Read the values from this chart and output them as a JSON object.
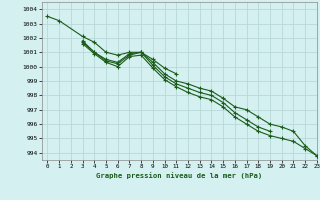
{
  "title": "Graphe pression niveau de la mer (hPa)",
  "background_color": "#d4f0f0",
  "grid_color": "#b8d8d8",
  "line_color": "#1a5c1a",
  "xlim": [
    -0.5,
    23
  ],
  "ylim": [
    993.5,
    1004.5
  ],
  "yticks": [
    994,
    995,
    996,
    997,
    998,
    999,
    1000,
    1001,
    1002,
    1003,
    1004
  ],
  "xticks": [
    0,
    1,
    2,
    3,
    4,
    5,
    6,
    7,
    8,
    9,
    10,
    11,
    12,
    13,
    14,
    15,
    16,
    17,
    18,
    19,
    20,
    21,
    22,
    23
  ],
  "series": [
    [
      0,
      1003.5
    ],
    [
      1,
      1003.2
    ],
    [
      3,
      1002.1
    ],
    [
      4,
      1001.7
    ],
    [
      5,
      1001.0
    ],
    [
      6,
      1000.8
    ],
    [
      7,
      1001.0
    ],
    [
      8,
      1001.0
    ],
    [
      9,
      1000.5
    ],
    [
      10,
      999.9
    ],
    [
      11,
      999.5
    ]
  ],
  "series2": [
    [
      3,
      1001.8
    ],
    [
      4,
      1001.0
    ],
    [
      5,
      1000.5
    ],
    [
      6,
      1000.3
    ],
    [
      7,
      1000.9
    ],
    [
      8,
      1001.0
    ],
    [
      9,
      1000.3
    ],
    [
      10,
      999.5
    ],
    [
      11,
      999.0
    ],
    [
      12,
      998.8
    ],
    [
      13,
      998.5
    ],
    [
      14,
      998.3
    ],
    [
      15,
      997.8
    ],
    [
      16,
      997.2
    ],
    [
      17,
      997.0
    ],
    [
      18,
      996.5
    ],
    [
      19,
      996.0
    ],
    [
      20,
      995.8
    ],
    [
      21,
      995.5
    ],
    [
      22,
      994.5
    ],
    [
      23,
      993.8
    ]
  ],
  "series3": [
    [
      3,
      1001.7
    ],
    [
      4,
      1001.0
    ],
    [
      5,
      1000.4
    ],
    [
      6,
      1000.2
    ],
    [
      7,
      1000.8
    ],
    [
      8,
      1001.0
    ],
    [
      9,
      1000.1
    ],
    [
      10,
      999.3
    ],
    [
      11,
      998.8
    ],
    [
      12,
      998.5
    ],
    [
      13,
      998.2
    ],
    [
      14,
      998.0
    ],
    [
      15,
      997.5
    ],
    [
      16,
      996.8
    ],
    [
      17,
      996.3
    ],
    [
      18,
      995.8
    ],
    [
      19,
      995.5
    ]
  ],
  "series4": [
    [
      3,
      1001.6
    ],
    [
      4,
      1000.9
    ],
    [
      5,
      1000.3
    ],
    [
      6,
      1000.0
    ],
    [
      7,
      1000.7
    ],
    [
      8,
      1000.8
    ],
    [
      9,
      999.9
    ],
    [
      10,
      999.1
    ],
    [
      11,
      998.6
    ],
    [
      12,
      998.2
    ],
    [
      13,
      997.9
    ],
    [
      14,
      997.7
    ],
    [
      15,
      997.2
    ],
    [
      16,
      996.5
    ],
    [
      17,
      996.0
    ],
    [
      18,
      995.5
    ],
    [
      19,
      995.2
    ],
    [
      20,
      995.0
    ],
    [
      21,
      994.8
    ],
    [
      22,
      994.3
    ],
    [
      23,
      993.8
    ]
  ]
}
